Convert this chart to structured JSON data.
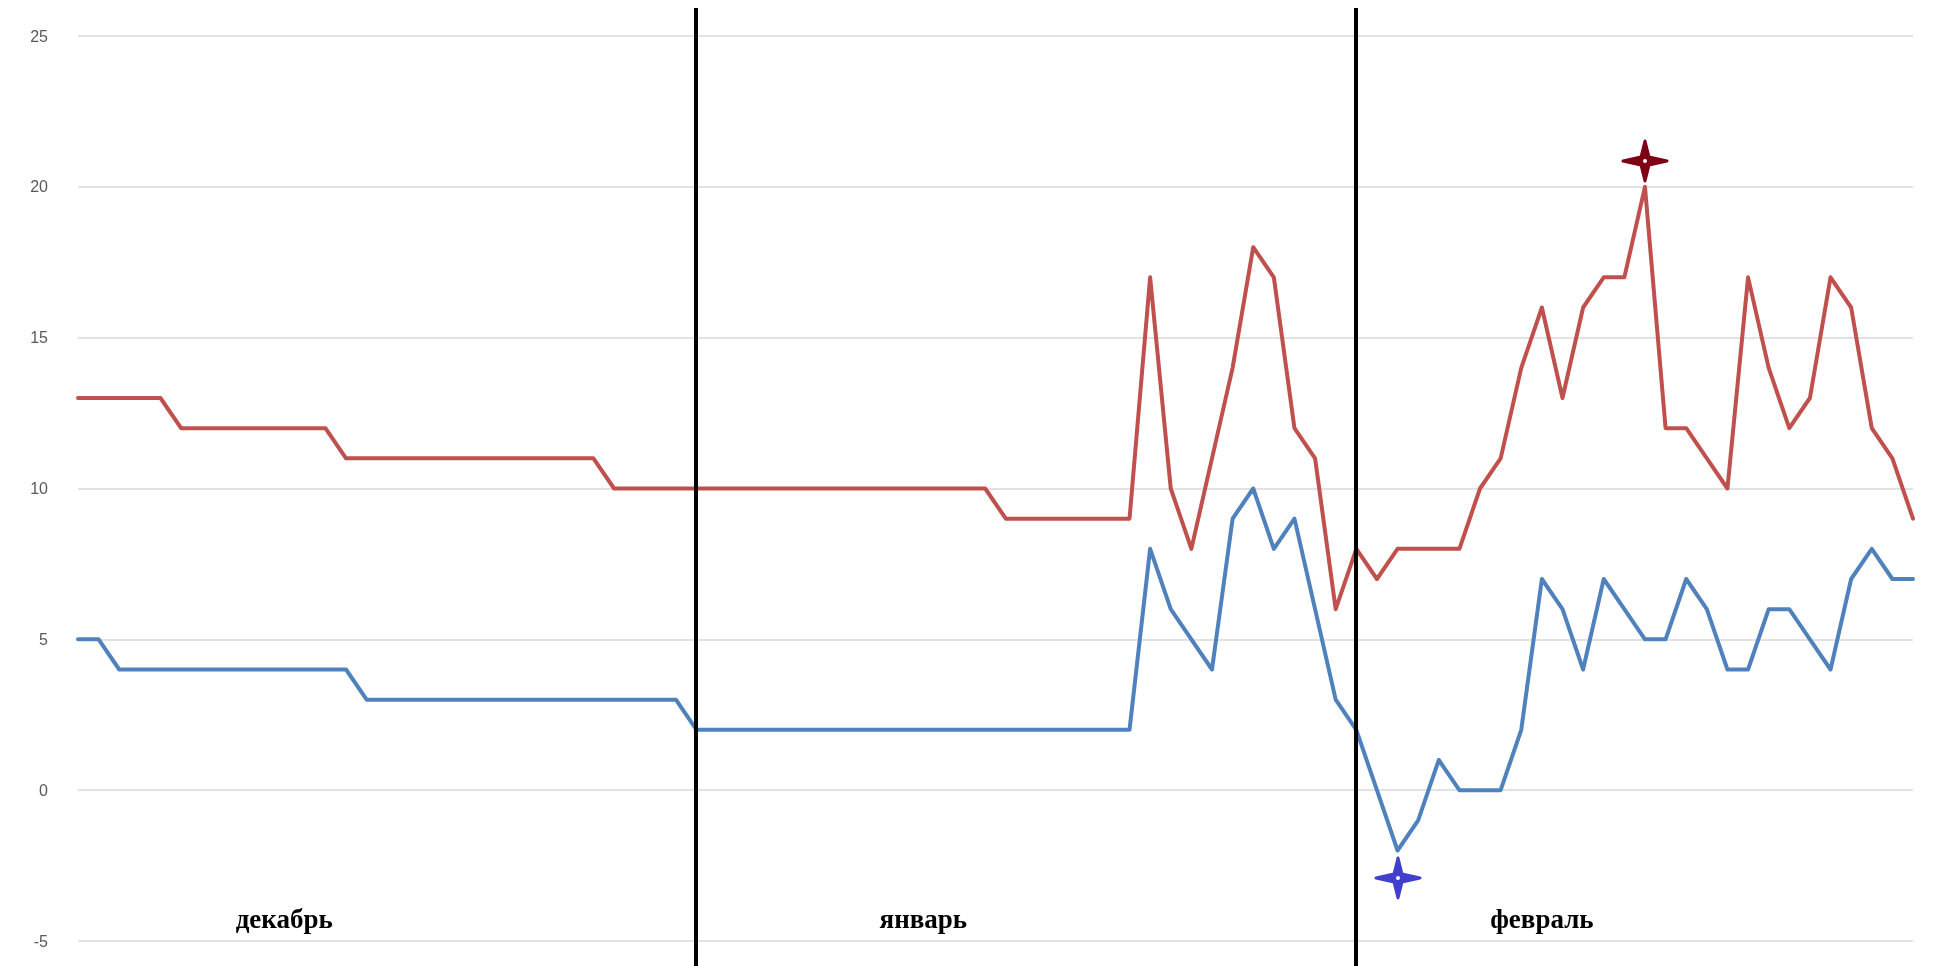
{
  "chart_data": {
    "type": "line",
    "categories": [
      null,
      null,
      null,
      null,
      null,
      null,
      null,
      null,
      null,
      null,
      null,
      null,
      null,
      null,
      null,
      null,
      null,
      null,
      null,
      null,
      null,
      null,
      null,
      null,
      null,
      null,
      null,
      null,
      null,
      null,
      null,
      null,
      null,
      null,
      null,
      null,
      null,
      null,
      null,
      null,
      null,
      null,
      null,
      null,
      null,
      null,
      null,
      null,
      null,
      null,
      null,
      null,
      null,
      null,
      null,
      null,
      null,
      null,
      null,
      null,
      null,
      null,
      null,
      null,
      null,
      null,
      null,
      null,
      null,
      null,
      null,
      null,
      null,
      null,
      null,
      null,
      null,
      null,
      null,
      null,
      null,
      null,
      null,
      null,
      null,
      null,
      null,
      null,
      null,
      null
    ],
    "series": [
      {
        "color": "#c0504d",
        "values": [
          13,
          13,
          13,
          13,
          13,
          12,
          12,
          12,
          12,
          12,
          12,
          12,
          12,
          11,
          11,
          11,
          11,
          11,
          11,
          11,
          11,
          11,
          11,
          11,
          11,
          11,
          10,
          10,
          10,
          10,
          10,
          10,
          10,
          10,
          10,
          10,
          10,
          10,
          10,
          10,
          10,
          10,
          10,
          10,
          10,
          9,
          9,
          9,
          9,
          9,
          9,
          9,
          17,
          10,
          8,
          11,
          14,
          18,
          17,
          12,
          11,
          6,
          8,
          7,
          8,
          8,
          8,
          8,
          10,
          11,
          14,
          16,
          13,
          16,
          17,
          17,
          20,
          12,
          12,
          11,
          10,
          17,
          14,
          12,
          13,
          17,
          16,
          12,
          11,
          9
        ]
      },
      {
        "color": "#4f81bd",
        "values": [
          5,
          5,
          4,
          4,
          4,
          4,
          4,
          4,
          4,
          4,
          4,
          4,
          4,
          4,
          3,
          3,
          3,
          3,
          3,
          3,
          3,
          3,
          3,
          3,
          3,
          3,
          3,
          3,
          3,
          3,
          2,
          2,
          2,
          2,
          2,
          2,
          2,
          2,
          2,
          2,
          2,
          2,
          2,
          2,
          2,
          2,
          2,
          2,
          2,
          2,
          2,
          2,
          8,
          6,
          5,
          4,
          9,
          10,
          8,
          9,
          6,
          3,
          2,
          0,
          -2,
          -1,
          1,
          0,
          0,
          0,
          2,
          7,
          6,
          4,
          7,
          6,
          5,
          5,
          7,
          6,
          4,
          4,
          6,
          6,
          5,
          4,
          7,
          8,
          7,
          7
        ]
      }
    ],
    "ylim": [
      -5,
      25
    ],
    "yticks": [
      -5,
      0,
      5,
      10,
      15,
      20,
      25
    ],
    "grid": "y",
    "marker": "none",
    "line_style": "solid",
    "tick_labels": "y",
    "annotations": [
      "декабрь",
      "январь",
      "февраль"
    ]
  }
}
